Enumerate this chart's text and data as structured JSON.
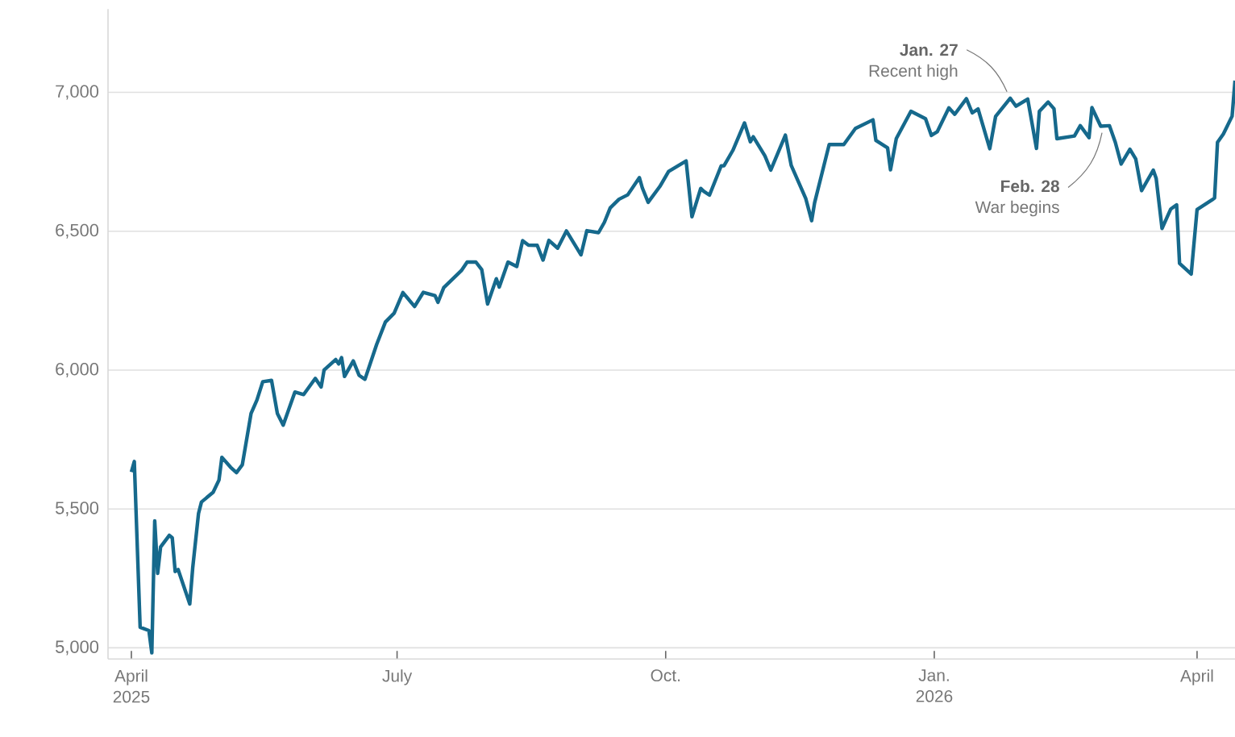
{
  "chart_data": {
    "type": "line",
    "color": "#16698c",
    "grid": "y",
    "xlim": [
      "2025-03-24",
      "2026-04-14"
    ],
    "xticks": [
      {
        "value": "2025-04-01",
        "label": "April 2025"
      },
      {
        "value": "2025-07-01",
        "label": "July"
      },
      {
        "value": "2025-10-01",
        "label": "Oct."
      },
      {
        "value": "2026-01-01",
        "label": "Jan. 2026"
      },
      {
        "value": "2026-04-01",
        "label": "April"
      }
    ],
    "ylim": [
      4960,
      7300
    ],
    "yticks": [
      {
        "value": 5000,
        "label": "5,000"
      },
      {
        "value": 5500,
        "label": "5,500"
      },
      {
        "value": 6000,
        "label": "6,000"
      },
      {
        "value": 6500,
        "label": "6,500"
      },
      {
        "value": 7000,
        "label": "7,000"
      }
    ],
    "annotations": [
      {
        "text": "Jan. 27",
        "x": "2026-01-27",
        "y": 6979
      },
      {
        "text": "Recent high",
        "x": "2026-01-27",
        "y": 6979
      },
      {
        "text": "Feb. 28",
        "x": "2026-02-28",
        "y": 6878
      },
      {
        "text": "War begins",
        "x": "2026-02-28",
        "y": 6878
      }
    ],
    "x": [
      "2025-04-01",
      "2025-04-02",
      "2025-04-04",
      "2025-04-07",
      "2025-04-08",
      "2025-04-09",
      "2025-04-10",
      "2025-04-11",
      "2025-04-14",
      "2025-04-15",
      "2025-04-16",
      "2025-04-17",
      "2025-04-21",
      "2025-04-22",
      "2025-04-24",
      "2025-04-25",
      "2025-04-29",
      "2025-05-01",
      "2025-05-02",
      "2025-05-05",
      "2025-05-07",
      "2025-05-09",
      "2025-05-12",
      "2025-05-14",
      "2025-05-16",
      "2025-05-19",
      "2025-05-21",
      "2025-05-23",
      "2025-05-27",
      "2025-05-30",
      "2025-06-03",
      "2025-06-05",
      "2025-06-06",
      "2025-06-10",
      "2025-06-11",
      "2025-06-12",
      "2025-06-13",
      "2025-06-16",
      "2025-06-18",
      "2025-06-20",
      "2025-06-24",
      "2025-06-27",
      "2025-06-30",
      "2025-07-03",
      "2025-07-07",
      "2025-07-10",
      "2025-07-14",
      "2025-07-15",
      "2025-07-17",
      "2025-07-23",
      "2025-07-25",
      "2025-07-28",
      "2025-07-30",
      "2025-08-01",
      "2025-08-04",
      "2025-08-05",
      "2025-08-08",
      "2025-08-11",
      "2025-08-13",
      "2025-08-15",
      "2025-08-18",
      "2025-08-20",
      "2025-08-22",
      "2025-08-25",
      "2025-08-28",
      "2025-09-02",
      "2025-09-04",
      "2025-09-08",
      "2025-09-10",
      "2025-09-12",
      "2025-09-15",
      "2025-09-18",
      "2025-09-22",
      "2025-09-23",
      "2025-09-25",
      "2025-09-29",
      "2025-10-02",
      "2025-10-08",
      "2025-10-10",
      "2025-10-13",
      "2025-10-14",
      "2025-10-16",
      "2025-10-20",
      "2025-10-21",
      "2025-10-24",
      "2025-10-28",
      "2025-10-30",
      "2025-10-31",
      "2025-11-04",
      "2025-11-06",
      "2025-11-11",
      "2025-11-13",
      "2025-11-18",
      "2025-11-20",
      "2025-11-21",
      "2025-11-26",
      "2025-12-01",
      "2025-12-05",
      "2025-12-11",
      "2025-12-12",
      "2025-12-16",
      "2025-12-17",
      "2025-12-19",
      "2025-12-24",
      "2025-12-29",
      "2025-12-31",
      "2026-01-02",
      "2026-01-06",
      "2026-01-08",
      "2026-01-12",
      "2026-01-14",
      "2026-01-16",
      "2026-01-20",
      "2026-01-22",
      "2026-01-27",
      "2026-01-29",
      "2026-02-02",
      "2026-02-03",
      "2026-02-05",
      "2026-02-06",
      "2026-02-09",
      "2026-02-11",
      "2026-02-12",
      "2026-02-18",
      "2026-02-20",
      "2026-02-23",
      "2026-02-24",
      "2026-02-27",
      "2026-03-02",
      "2026-03-04",
      "2026-03-06",
      "2026-03-09",
      "2026-03-11",
      "2026-03-13",
      "2026-03-17",
      "2026-03-18",
      "2026-03-20",
      "2026-03-23",
      "2026-03-25",
      "2026-03-26",
      "2026-03-30",
      "2026-04-01",
      "2026-04-06",
      "2026-04-07",
      "2026-04-08",
      "2026-04-10",
      "2026-04-13",
      "2026-04-14"
    ],
    "values": [
      5633,
      5671,
      5074,
      5062,
      4982,
      5457,
      5268,
      5363,
      5405,
      5396,
      5275,
      5282,
      5158,
      5287,
      5484,
      5525,
      5560,
      5604,
      5686,
      5650,
      5631,
      5659,
      5844,
      5892,
      5958,
      5963,
      5844,
      5802,
      5921,
      5912,
      5970,
      5939,
      6000,
      6038,
      6022,
      6045,
      5977,
      6033,
      5981,
      5967,
      6092,
      6173,
      6205,
      6279,
      6229,
      6280,
      6268,
      6244,
      6297,
      6358,
      6389,
      6389,
      6362,
      6238,
      6329,
      6299,
      6389,
      6373,
      6466,
      6450,
      6449,
      6396,
      6467,
      6439,
      6501,
      6415,
      6502,
      6495,
      6532,
      6584,
      6615,
      6631,
      6693,
      6656,
      6604,
      6661,
      6715,
      6753,
      6552,
      6654,
      6644,
      6630,
      6735,
      6736,
      6791,
      6890,
      6822,
      6840,
      6771,
      6720,
      6846,
      6737,
      6617,
      6538,
      6602,
      6812,
      6812,
      6870,
      6901,
      6827,
      6800,
      6721,
      6834,
      6932,
      6905,
      6845,
      6858,
      6944,
      6921,
      6977,
      6926,
      6940,
      6797,
      6913,
      6979,
      6950,
      6976,
      6917,
      6798,
      6932,
      6965,
      6941,
      6833,
      6843,
      6880,
      6837,
      6945,
      6878,
      6880,
      6820,
      6742,
      6795,
      6760,
      6646,
      6720,
      6690,
      6510,
      6580,
      6595,
      6384,
      6346,
      6578,
      6612,
      6620,
      6820,
      6850,
      6914,
      7042
    ]
  }
}
